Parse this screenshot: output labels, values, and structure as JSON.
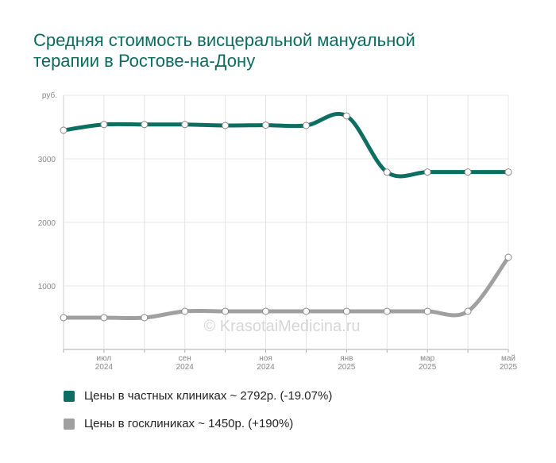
{
  "chart_data": {
    "type": "line",
    "title": "Средняя стоимость висцеральной мануальной терапии в Ростове-на-Дону",
    "y_label": "руб.",
    "watermark": "© KrasotaiMedicina.ru",
    "categories": [
      null,
      "июл 2024",
      null,
      "сен 2024",
      null,
      "ноя 2024",
      null,
      "янв 2025",
      null,
      "мар 2025",
      null,
      "май 2025"
    ],
    "series": [
      {
        "name": "Цены в частных клиниках ~ 2792р. (-19.07%)",
        "color": "#0f6e62",
        "values": [
          3450,
          3540,
          3540,
          3540,
          3525,
          3530,
          3525,
          3675,
          2790,
          2792,
          2792,
          2792
        ]
      },
      {
        "name": "Цены в госклиниках ~ 1450р. (+190%)",
        "color": "#a0a0a0",
        "values": [
          500,
          500,
          500,
          600,
          600,
          600,
          600,
          600,
          600,
          600,
          600,
          1450
        ]
      }
    ],
    "ylim": [
      0,
      4000
    ],
    "yticks": [
      1000,
      2000,
      3000
    ],
    "grid": true
  }
}
